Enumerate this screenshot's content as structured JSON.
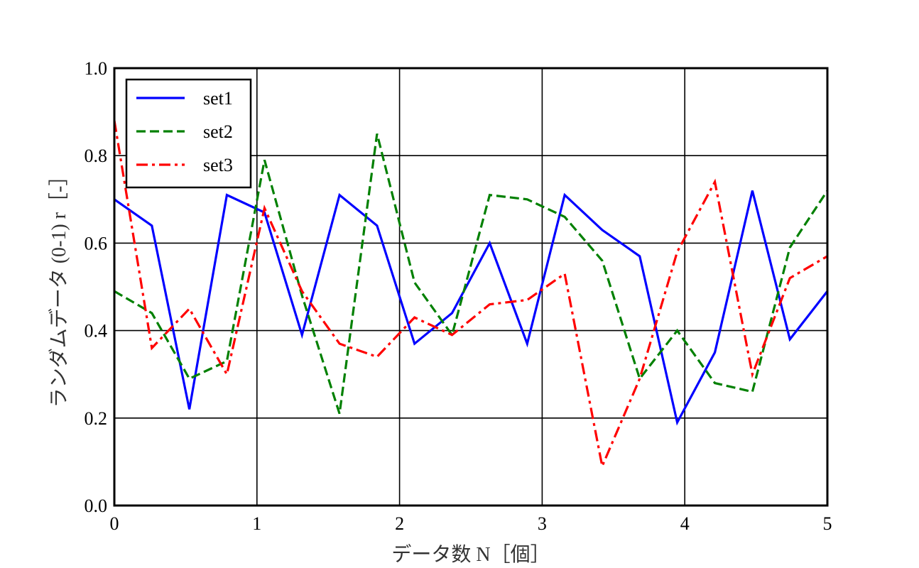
{
  "chart_data": {
    "type": "line",
    "xlabel": "データ数 N［個］",
    "ylabel": "ランダムデータ (0-1) r［-］",
    "xlim": [
      0,
      5
    ],
    "ylim": [
      0.0,
      1.0
    ],
    "xticks": [
      0,
      1,
      2,
      3,
      4,
      5
    ],
    "xtick_labels": [
      "0",
      "1",
      "2",
      "3",
      "4",
      "5"
    ],
    "yticks": [
      0.0,
      0.2,
      0.4,
      0.6,
      0.8,
      1.0
    ],
    "ytick_labels": [
      "0.0",
      "0.2",
      "0.4",
      "0.6",
      "0.8",
      "1.0"
    ],
    "grid": true,
    "legend_position": "top-left",
    "x": [
      0,
      0.263,
      0.526,
      0.789,
      1.053,
      1.316,
      1.579,
      1.842,
      2.105,
      2.368,
      2.632,
      2.895,
      3.158,
      3.421,
      3.684,
      3.947,
      4.211,
      4.474,
      4.737,
      5.0
    ],
    "series": [
      {
        "name": "set1",
        "color": "#0000ff",
        "dash": "solid",
        "values": [
          0.7,
          0.64,
          0.22,
          0.71,
          0.67,
          0.39,
          0.71,
          0.64,
          0.37,
          0.44,
          0.6,
          0.37,
          0.71,
          0.63,
          0.57,
          0.19,
          0.35,
          0.72,
          0.38,
          0.49
        ]
      },
      {
        "name": "set2",
        "color": "#008000",
        "dash": "dashed",
        "values": [
          0.49,
          0.44,
          0.29,
          0.33,
          0.79,
          0.48,
          0.21,
          0.85,
          0.51,
          0.39,
          0.71,
          0.7,
          0.66,
          0.56,
          0.29,
          0.4,
          0.28,
          0.26,
          0.59,
          0.72
        ]
      },
      {
        "name": "set3",
        "color": "#ff0000",
        "dash": "dashdot",
        "values": [
          0.88,
          0.36,
          0.45,
          0.3,
          0.68,
          0.49,
          0.37,
          0.34,
          0.43,
          0.39,
          0.46,
          0.47,
          0.53,
          0.09,
          0.29,
          0.58,
          0.74,
          0.3,
          0.52,
          0.57
        ]
      }
    ]
  }
}
